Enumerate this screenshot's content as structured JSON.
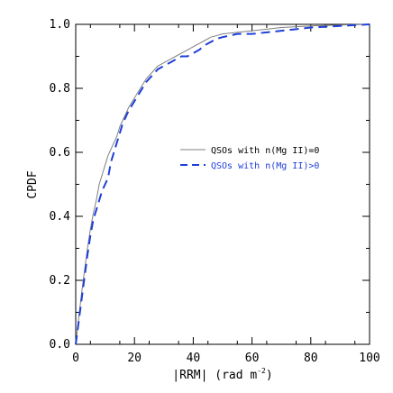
{
  "chart_data": {
    "type": "line",
    "title": "",
    "xlabel": "|RRM| (rad m⁻²)",
    "xlabel_parts": {
      "main": "|RRM|  (rad m",
      "sup": "-2",
      "close": ")"
    },
    "ylabel": "CPDF",
    "xlim": [
      0,
      100
    ],
    "ylim": [
      0,
      1.0
    ],
    "xticks": [
      0,
      20,
      40,
      60,
      80,
      100
    ],
    "xtick_labels": [
      "0",
      "20",
      "40",
      "60",
      "80",
      "100"
    ],
    "yticks": [
      0.0,
      0.2,
      0.4,
      0.6,
      0.8,
      1.0
    ],
    "ytick_labels": [
      "0.0",
      "0.2",
      "0.4",
      "0.6",
      "0.8",
      "1.0"
    ],
    "grid": false,
    "legend_position": "center-right",
    "series": [
      {
        "name": "QSOs with n(Mg II)=0",
        "color": "#808080",
        "style": "solid",
        "x": [
          0,
          1,
          2,
          3,
          4,
          5,
          6,
          7,
          8,
          9,
          10,
          11,
          12,
          13,
          14,
          15,
          16,
          17,
          18,
          20,
          22,
          24,
          26,
          28,
          30,
          32,
          34,
          36,
          38,
          40,
          42,
          44,
          46,
          48,
          50,
          55,
          60,
          65,
          70,
          80,
          90,
          100
        ],
        "y": [
          0.0,
          0.08,
          0.16,
          0.23,
          0.3,
          0.36,
          0.41,
          0.45,
          0.5,
          0.53,
          0.56,
          0.59,
          0.61,
          0.63,
          0.65,
          0.68,
          0.7,
          0.72,
          0.74,
          0.77,
          0.8,
          0.83,
          0.85,
          0.87,
          0.88,
          0.89,
          0.9,
          0.91,
          0.92,
          0.93,
          0.94,
          0.95,
          0.96,
          0.965,
          0.97,
          0.975,
          0.98,
          0.985,
          0.99,
          0.995,
          0.998,
          1.0
        ]
      },
      {
        "name": "QSOs with n(Mg II)>0",
        "color": "#1f3fd8",
        "style": "dashed",
        "x": [
          0,
          1,
          2,
          3,
          4,
          5,
          6,
          7,
          8,
          9,
          10,
          11,
          12,
          13,
          14,
          15,
          16,
          17,
          18,
          20,
          22,
          24,
          26,
          28,
          30,
          32,
          34,
          36,
          38,
          40,
          42,
          44,
          46,
          48,
          50,
          55,
          60,
          65,
          70,
          75,
          80,
          90,
          100
        ],
        "y": [
          0.0,
          0.07,
          0.14,
          0.21,
          0.28,
          0.34,
          0.39,
          0.42,
          0.45,
          0.48,
          0.5,
          0.52,
          0.57,
          0.6,
          0.63,
          0.66,
          0.69,
          0.71,
          0.73,
          0.76,
          0.79,
          0.82,
          0.84,
          0.86,
          0.87,
          0.88,
          0.89,
          0.9,
          0.9,
          0.91,
          0.92,
          0.935,
          0.945,
          0.955,
          0.96,
          0.97,
          0.97,
          0.975,
          0.98,
          0.985,
          0.99,
          0.995,
          1.0
        ]
      }
    ]
  }
}
